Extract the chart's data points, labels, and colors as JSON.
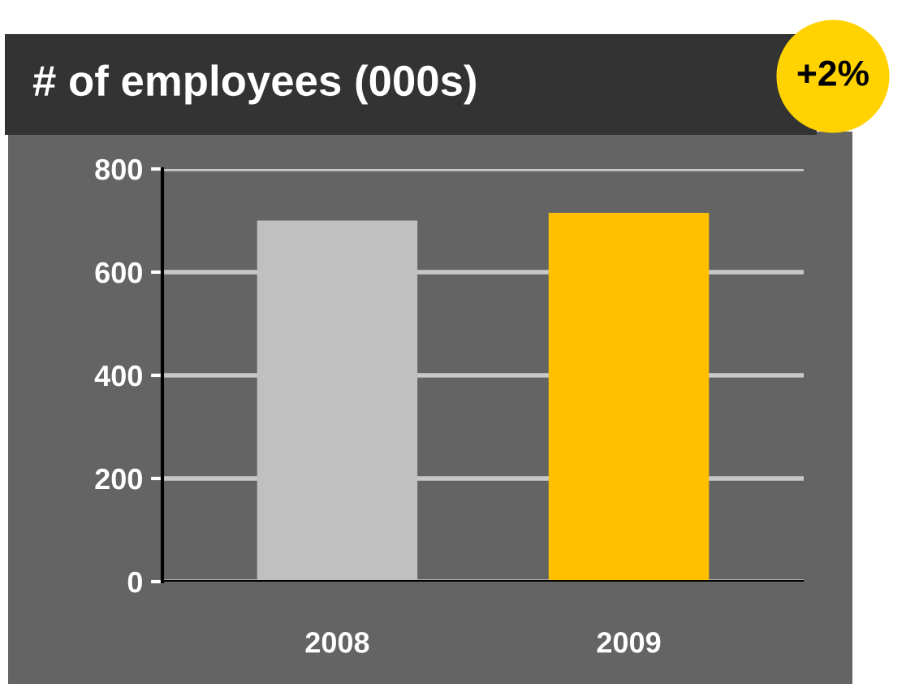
{
  "chart_data": {
    "type": "bar",
    "title": "# of employees (000s)",
    "categories": [
      "2008",
      "2009"
    ],
    "values": [
      700,
      715
    ],
    "colors": [
      "#c0c0c0",
      "#ffc000"
    ],
    "ylim": [
      0,
      800
    ],
    "yticks": [
      0,
      200,
      400,
      600,
      800
    ],
    "grid": "y",
    "annotations": [
      "+2%"
    ]
  }
}
